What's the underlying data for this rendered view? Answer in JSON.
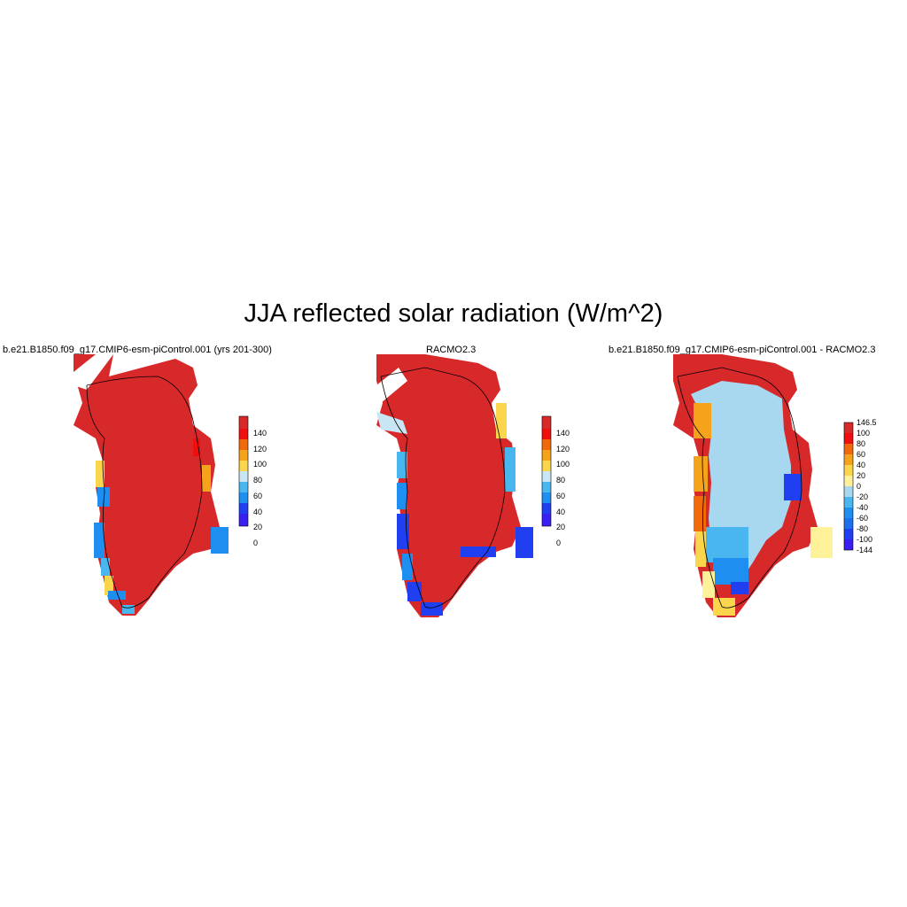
{
  "title": "JJA reflected solar radiation (W/m^2)",
  "panels": [
    {
      "title": "b.e21.B1850.f09_g17.CMIP6-esm-piControl.001 (yrs 201-300)",
      "colorbar": {
        "labels": [
          "0",
          "20",
          "40",
          "60",
          "80",
          "100",
          "120",
          "140"
        ],
        "colors": [
          "#3a1ff2",
          "#1f3ff0",
          "#1e8ff0",
          "#4ab6f0",
          "#c8e6f4",
          "#fbd54c",
          "#f4a31b",
          "#f06a0c",
          "#f00f0f",
          "#d7282a"
        ]
      }
    },
    {
      "title": "RACMO2.3",
      "colorbar": {
        "labels": [
          "0",
          "20",
          "40",
          "60",
          "80",
          "100",
          "120",
          "140"
        ],
        "colors": [
          "#3a1ff2",
          "#1f3ff0",
          "#1e8ff0",
          "#4ab6f0",
          "#c8e6f4",
          "#fbd54c",
          "#f4a31b",
          "#f06a0c",
          "#f00f0f",
          "#d7282a"
        ]
      }
    },
    {
      "title": "b.e21.B1850.f09_g17.CMIP6-esm-piControl.001 - RACMO2.3",
      "colorbar": {
        "labels": [
          "-144",
          "-100",
          "-80",
          "-60",
          "-40",
          "-20",
          "0",
          "20",
          "40",
          "60",
          "80",
          "100",
          "146.5"
        ],
        "colors": [
          "#3a1ff2",
          "#1f3ff0",
          "#1e6ff0",
          "#1e8ff0",
          "#4ab6f0",
          "#a8d8f0",
          "#fff09a",
          "#fbd54c",
          "#f4a31b",
          "#f06a0c",
          "#f00f0f",
          "#d7282a"
        ]
      }
    }
  ]
}
